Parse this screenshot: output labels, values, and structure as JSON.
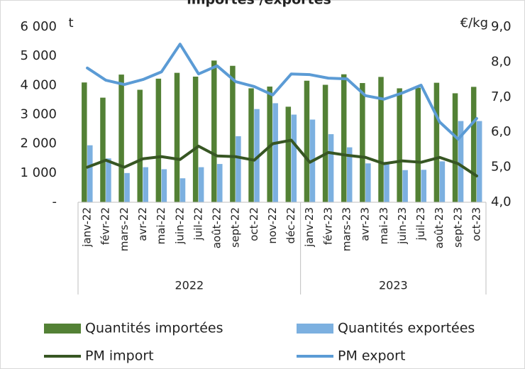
{
  "chart_data": {
    "type": "bar_line",
    "title": "importés /exportés",
    "y_label": "t",
    "y2_label": "€/kg",
    "categories": [
      "janv-22",
      "févr-22",
      "mars-22",
      "avr-22",
      "mai-22",
      "juin-22",
      "juil-22",
      "août-22",
      "sept-22",
      "oct-22",
      "nov-22",
      "déc-22",
      "janv-23",
      "févr-23",
      "mars-23",
      "avr-23",
      "mai-23",
      "juin-23",
      "juil-23",
      "août-23",
      "sept-23",
      "oct-23"
    ],
    "groups": [
      {
        "label": "2022",
        "size": 12
      },
      {
        "label": "2023",
        "size": 10
      }
    ],
    "ylim": [
      0,
      6000
    ],
    "yticks": [
      {
        "value": 0,
        "label": "-"
      },
      {
        "value": 1000,
        "label": "1 000"
      },
      {
        "value": 2000,
        "label": "2 000"
      },
      {
        "value": 3000,
        "label": "3 000"
      },
      {
        "value": 4000,
        "label": "4 000"
      },
      {
        "value": 5000,
        "label": "5 000"
      },
      {
        "value": 6000,
        "label": "6 000"
      }
    ],
    "y2lim": [
      4,
      9
    ],
    "y2ticks": [
      {
        "value": 4,
        "label": "4,0"
      },
      {
        "value": 5,
        "label": "5,0"
      },
      {
        "value": 6,
        "label": "6,0"
      },
      {
        "value": 7,
        "label": "7,0"
      },
      {
        "value": 8,
        "label": "8,0"
      },
      {
        "value": 9,
        "label": "9,0"
      }
    ],
    "series": [
      {
        "name": "Quantités importées",
        "type": "bar",
        "color": "#538135",
        "values": [
          4100,
          3580,
          4370,
          3850,
          4230,
          4430,
          4300,
          4850,
          4670,
          3900,
          3960,
          3270,
          4160,
          4020,
          4380,
          4080,
          4290,
          3900,
          3920,
          4090,
          3730,
          3950
        ]
      },
      {
        "name": "Quantités exportées",
        "type": "bar",
        "color": "#7cb0e0",
        "values": [
          1950,
          1500,
          1000,
          1200,
          1130,
          820,
          1200,
          1310,
          2260,
          3190,
          3390,
          3000,
          2830,
          2330,
          1880,
          1330,
          1380,
          1100,
          1110,
          1400,
          2780,
          2780
        ]
      },
      {
        "name": "PM import",
        "type": "line",
        "axis": "y2",
        "color": "#375623",
        "values": [
          5.0,
          5.2,
          5.0,
          5.24,
          5.3,
          5.22,
          5.6,
          5.32,
          5.3,
          5.2,
          5.67,
          5.77,
          5.14,
          5.42,
          5.34,
          5.28,
          5.1,
          5.18,
          5.14,
          5.28,
          5.1,
          4.75
        ]
      },
      {
        "name": "PM export",
        "type": "line",
        "axis": "y2",
        "color": "#5b9bd5",
        "values": [
          7.83,
          7.48,
          7.36,
          7.5,
          7.72,
          8.51,
          7.66,
          7.89,
          7.44,
          7.3,
          7.06,
          7.66,
          7.64,
          7.54,
          7.52,
          7.04,
          6.94,
          7.12,
          7.34,
          6.29,
          5.8,
          6.39
        ]
      }
    ]
  }
}
